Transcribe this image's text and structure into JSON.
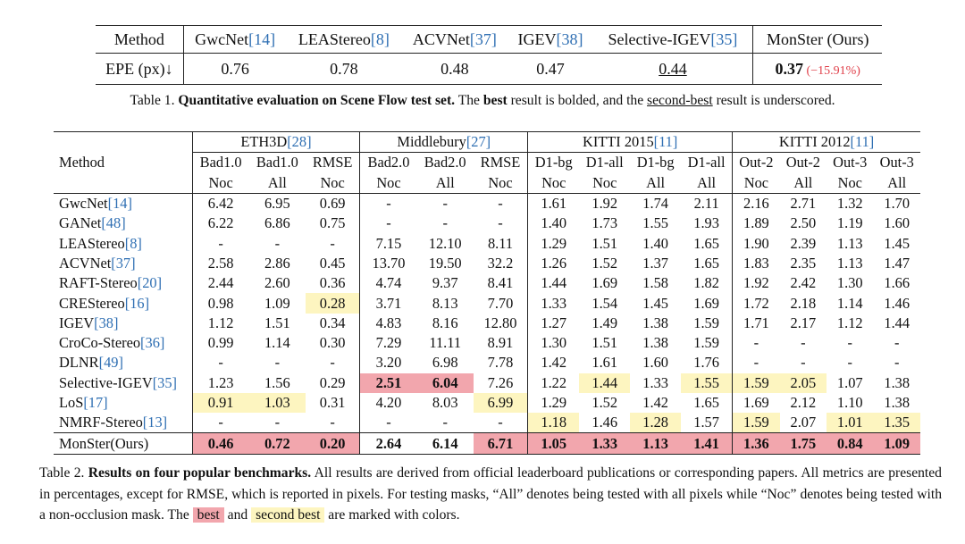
{
  "table1": {
    "header": [
      {
        "text": "Method",
        "cite": ""
      },
      {
        "text": "GwcNet",
        "cite": "[14]"
      },
      {
        "text": "LEAStereo",
        "cite": "[8]"
      },
      {
        "text": "ACVNet",
        "cite": "[37]"
      },
      {
        "text": "IGEV",
        "cite": "[38]"
      },
      {
        "text": "Selective-IGEV",
        "cite": "[35]"
      },
      {
        "text": "MonSter (Ours)",
        "cite": ""
      }
    ],
    "row_label": "EPE (px)↓",
    "values": [
      "0.76",
      "0.78",
      "0.48",
      "0.47",
      "0.44",
      "0.37"
    ],
    "delta": "(−15.91%)",
    "caption": {
      "prefix": "Table 1. ",
      "bold1": "Quantitative evaluation on Scene Flow test set.",
      "t1": " The ",
      "bold2": "best",
      "t2": " result is bolded, and the ",
      "under": "second-best",
      "t3": " result is underscored."
    }
  },
  "table2": {
    "groups": [
      {
        "name": "ETH3D",
        "cite": "[28]"
      },
      {
        "name": "Middlebury",
        "cite": "[27]"
      },
      {
        "name": "KITTI 2015",
        "cite": "[11]"
      },
      {
        "name": "KITTI 2012",
        "cite": "[11]"
      }
    ],
    "method_header": "Method",
    "sub1": [
      "Bad1.0",
      "Bad1.0",
      "RMSE",
      "Bad2.0",
      "Bad2.0",
      "RMSE",
      "D1-bg",
      "D1-all",
      "D1-bg",
      "D1-all",
      "Out-2",
      "Out-2",
      "Out-3",
      "Out-3"
    ],
    "sub2": [
      "Noc",
      "All",
      "Noc",
      "Noc",
      "All",
      "Noc",
      "Noc",
      "Noc",
      "All",
      "All",
      "Noc",
      "All",
      "Noc",
      "All"
    ],
    "rows": [
      {
        "name": "GwcNet",
        "cite": "[14]",
        "vals": [
          "6.42",
          "6.95",
          "0.69",
          "-",
          "-",
          "-",
          "1.61",
          "1.92",
          "1.74",
          "2.11",
          "2.16",
          "2.71",
          "1.32",
          "1.70"
        ],
        "hl": {}
      },
      {
        "name": "GANet",
        "cite": "[48]",
        "vals": [
          "6.22",
          "6.86",
          "0.75",
          "-",
          "-",
          "-",
          "1.40",
          "1.73",
          "1.55",
          "1.93",
          "1.89",
          "2.50",
          "1.19",
          "1.60"
        ],
        "hl": {}
      },
      {
        "name": "LEAStereo",
        "cite": "[8]",
        "vals": [
          "-",
          "-",
          "-",
          "7.15",
          "12.10",
          "8.11",
          "1.29",
          "1.51",
          "1.40",
          "1.65",
          "1.90",
          "2.39",
          "1.13",
          "1.45"
        ],
        "hl": {}
      },
      {
        "name": "ACVNet",
        "cite": "[37]",
        "vals": [
          "2.58",
          "2.86",
          "0.45",
          "13.70",
          "19.50",
          "32.2",
          "1.26",
          "1.52",
          "1.37",
          "1.65",
          "1.83",
          "2.35",
          "1.13",
          "1.47"
        ],
        "hl": {}
      },
      {
        "name": "RAFT-Stereo",
        "cite": "[20]",
        "vals": [
          "2.44",
          "2.60",
          "0.36",
          "4.74",
          "9.37",
          "8.41",
          "1.44",
          "1.69",
          "1.58",
          "1.82",
          "1.92",
          "2.42",
          "1.30",
          "1.66"
        ],
        "hl": {}
      },
      {
        "name": "CREStereo",
        "cite": "[16]",
        "vals": [
          "0.98",
          "1.09",
          "0.28",
          "3.71",
          "8.13",
          "7.70",
          "1.33",
          "1.54",
          "1.45",
          "1.69",
          "1.72",
          "2.18",
          "1.14",
          "1.46"
        ],
        "hl": {
          "2": "second"
        }
      },
      {
        "name": "IGEV",
        "cite": "[38]",
        "vals": [
          "1.12",
          "1.51",
          "0.34",
          "4.83",
          "8.16",
          "12.80",
          "1.27",
          "1.49",
          "1.38",
          "1.59",
          "1.71",
          "2.17",
          "1.12",
          "1.44"
        ],
        "hl": {}
      },
      {
        "name": "CroCo-Stereo",
        "cite": "[36]",
        "vals": [
          "0.99",
          "1.14",
          "0.30",
          "7.29",
          "11.11",
          "8.91",
          "1.30",
          "1.51",
          "1.38",
          "1.59",
          "-",
          "-",
          "-",
          "-"
        ],
        "hl": {}
      },
      {
        "name": "DLNR",
        "cite": "[49]",
        "vals": [
          "-",
          "-",
          "-",
          "3.20",
          "6.98",
          "7.78",
          "1.42",
          "1.61",
          "1.60",
          "1.76",
          "-",
          "-",
          "-",
          "-"
        ],
        "hl": {}
      },
      {
        "name": "Selective-IGEV",
        "cite": "[35]",
        "vals": [
          "1.23",
          "1.56",
          "0.29",
          "2.51",
          "6.04",
          "7.26",
          "1.22",
          "1.44",
          "1.33",
          "1.55",
          "1.59",
          "2.05",
          "1.07",
          "1.38"
        ],
        "hl": {
          "3": "best",
          "4": "best",
          "7": "second",
          "9": "second",
          "10": "second",
          "11": "second"
        }
      },
      {
        "name": "LoS",
        "cite": "[17]",
        "vals": [
          "0.91",
          "1.03",
          "0.31",
          "4.20",
          "8.03",
          "6.99",
          "1.29",
          "1.52",
          "1.42",
          "1.65",
          "1.69",
          "2.12",
          "1.10",
          "1.38"
        ],
        "hl": {
          "0": "second",
          "1": "second",
          "5": "second"
        }
      },
      {
        "name": "NMRF-Stereo",
        "cite": "[13]",
        "vals": [
          "-",
          "-",
          "-",
          "-",
          "-",
          "-",
          "1.18",
          "1.46",
          "1.28",
          "1.57",
          "1.59",
          "2.07",
          "1.01",
          "1.35"
        ],
        "hl": {
          "6": "second",
          "8": "second",
          "10": "second",
          "12": "second",
          "13": "second"
        }
      },
      {
        "name": "MonSter(Ours)",
        "cite": "",
        "vals": [
          "0.46",
          "0.72",
          "0.20",
          "2.64",
          "6.14",
          "6.71",
          "1.05",
          "1.33",
          "1.13",
          "1.41",
          "1.36",
          "1.75",
          "0.84",
          "1.09"
        ],
        "hl": {
          "0": "best",
          "1": "best",
          "2": "best",
          "5": "best",
          "6": "best",
          "7": "best",
          "8": "best",
          "9": "best",
          "10": "best",
          "11": "best",
          "12": "best",
          "13": "best"
        }
      }
    ],
    "caption": {
      "prefix": "Table 2. ",
      "bold": "Results on four popular benchmarks.",
      "text": " All results are derived from official leaderboard publications or corresponding papers. All metrics are presented in percentages, except for RMSE, which is reported in pixels. For testing masks, “All” denotes being tested with all pixels while “Noc” denotes being tested with a non-occlusion mask. The ",
      "best_tag": "best",
      "and": " and ",
      "second_tag": "second best",
      "end": " are marked with colors."
    }
  },
  "colors": {
    "best": "#f2a6ad",
    "second": "#fdf5c0",
    "citation": "#2f6fb3",
    "delta": "#e0404a"
  }
}
